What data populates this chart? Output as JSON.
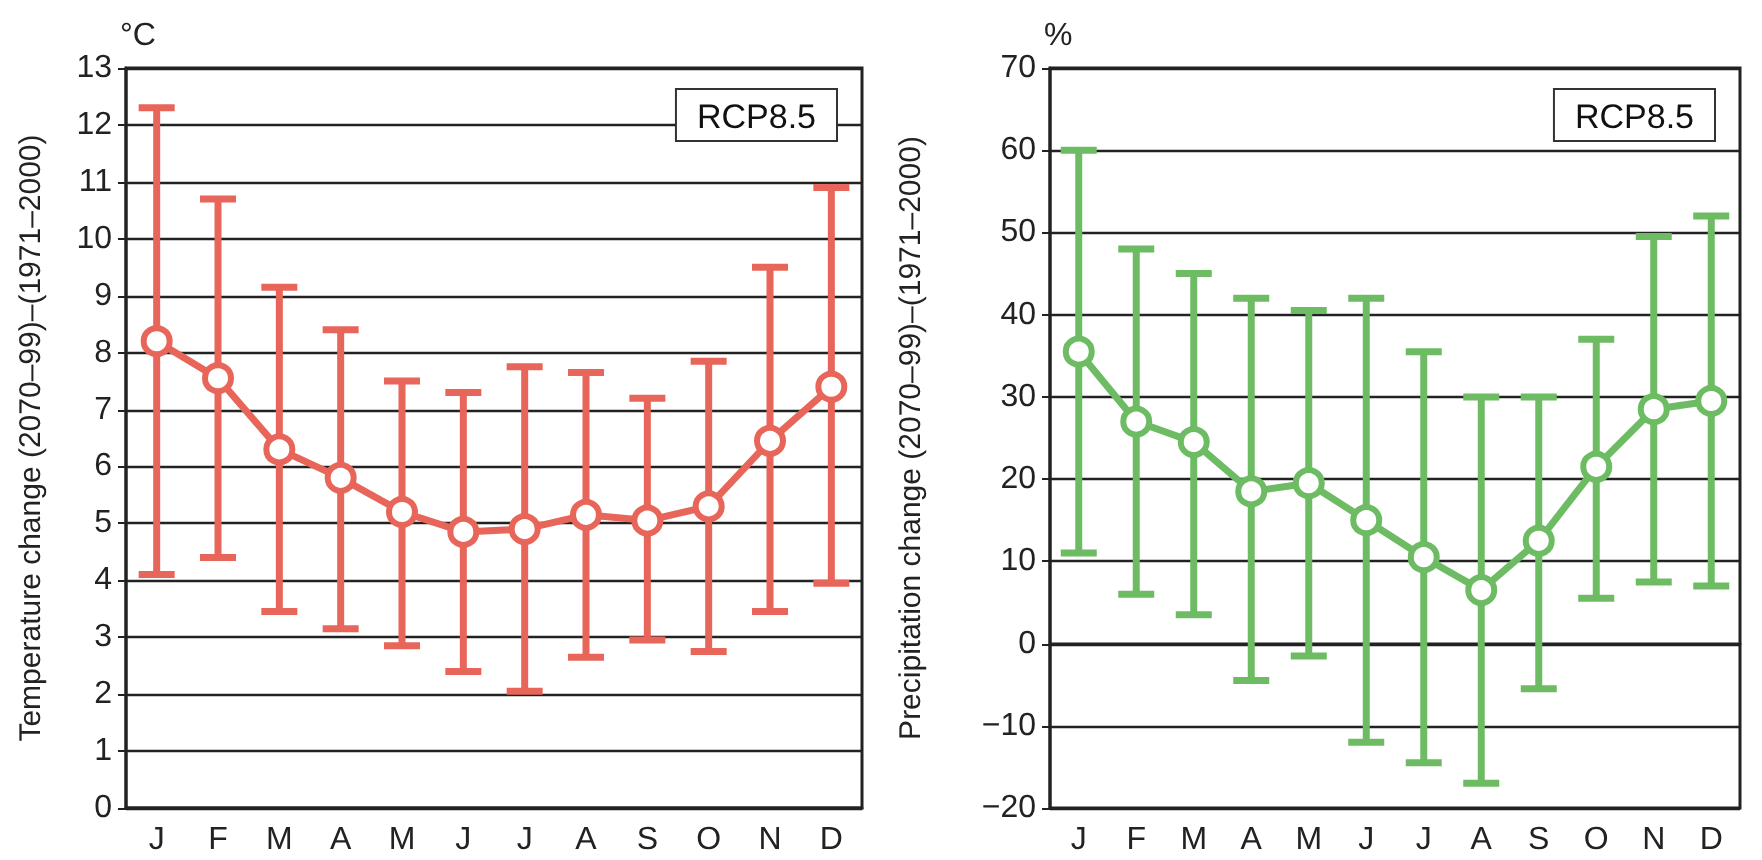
{
  "chart_data": [
    {
      "type": "line",
      "ylabel": "Temperature change (2070–99)–(1971–2000)",
      "annotations": [
        "°C",
        "RCP8.5"
      ],
      "categories": [
        "J",
        "F",
        "M",
        "A",
        "M",
        "J",
        "J",
        "A",
        "S",
        "O",
        "N",
        "D"
      ],
      "series": [
        {
          "color": "#e8655a",
          "values": [
            8.2,
            7.55,
            6.3,
            5.8,
            5.2,
            4.85,
            4.9,
            5.15,
            5.05,
            5.3,
            6.45,
            7.4
          ],
          "errors": [
            [
              4.1,
              12.3
            ],
            [
              4.4,
              10.7
            ],
            [
              3.45,
              9.15
            ],
            [
              3.15,
              8.4
            ],
            [
              2.85,
              7.5
            ],
            [
              2.4,
              7.3
            ],
            [
              2.05,
              7.75
            ],
            [
              2.65,
              7.65
            ],
            [
              2.95,
              7.2
            ],
            [
              2.75,
              7.85
            ],
            [
              3.45,
              9.5
            ],
            [
              3.95,
              10.9
            ]
          ]
        }
      ],
      "ylim": [
        0,
        13
      ],
      "yticks": [
        0,
        1,
        2,
        3,
        4,
        5,
        6,
        7,
        8,
        9,
        10,
        11,
        12,
        13
      ],
      "grid": "y",
      "marker": "circle",
      "line_style": "solid"
    },
    {
      "type": "line",
      "ylabel": "Precipitation change (2070–99)–(1971–2000)",
      "annotations": [
        "%",
        "RCP8.5"
      ],
      "categories": [
        "J",
        "F",
        "M",
        "A",
        "M",
        "J",
        "J",
        "A",
        "S",
        "O",
        "N",
        "D"
      ],
      "series": [
        {
          "color": "#6dbb63",
          "values": [
            35.5,
            27,
            24.5,
            18.5,
            19.5,
            15,
            10.5,
            6.5,
            12.5,
            21.5,
            28.5,
            29.5
          ],
          "errors": [
            [
              11,
              60
            ],
            [
              6,
              48
            ],
            [
              3.5,
              45
            ],
            [
              -4.5,
              42
            ],
            [
              -1.5,
              40.5
            ],
            [
              -12,
              42
            ],
            [
              -14.5,
              35.5
            ],
            [
              -17,
              30
            ],
            [
              -5.5,
              30
            ],
            [
              5.5,
              37
            ],
            [
              7.5,
              49.5
            ],
            [
              7,
              52
            ]
          ]
        }
      ],
      "ylim": [
        -20,
        70
      ],
      "yticks": [
        {
          "value": -20,
          "label": "−20"
        },
        {
          "value": -10,
          "label": "−10"
        },
        0,
        10,
        20,
        30,
        40,
        50,
        60,
        70
      ],
      "grid": "y",
      "marker": "circle",
      "line_style": "solid"
    }
  ]
}
